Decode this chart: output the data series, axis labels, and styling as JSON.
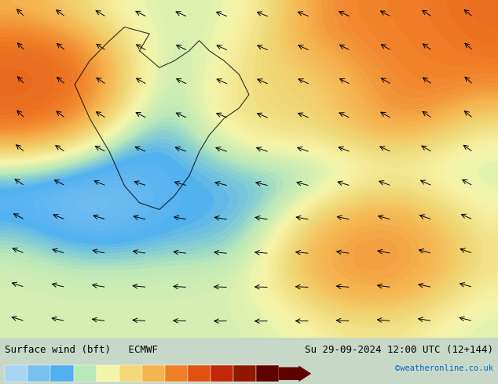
{
  "title_left": "Surface wind (bft)   ECMWF",
  "title_right": "Su 29-09-2024 12:00 UTC (12+144)",
  "credit": "©weatheronline.co.uk",
  "colorbar_levels": [
    1,
    2,
    3,
    4,
    5,
    6,
    7,
    8,
    9,
    10,
    11,
    12
  ],
  "colorbar_colors": [
    "#aad4f5",
    "#78c0f0",
    "#50b0f0",
    "#b8e8b8",
    "#f5f5aa",
    "#f5d878",
    "#f5b450",
    "#f08028",
    "#e05010",
    "#c02808",
    "#901800",
    "#600000"
  ],
  "background_color": "#e8f4e8",
  "fig_width": 6.34,
  "fig_height": 4.9,
  "dpi": 100
}
